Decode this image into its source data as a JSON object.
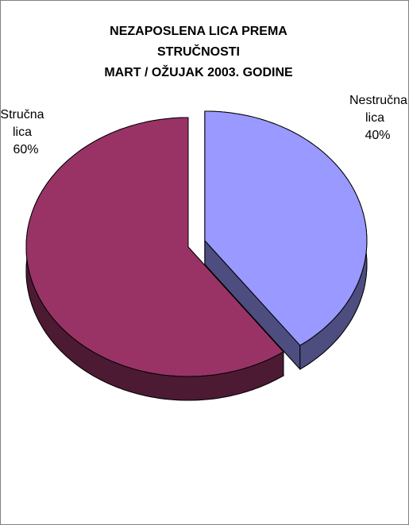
{
  "chart_data": {
    "type": "pie",
    "title": [
      "NEZAPOSLENA LICA PREMA",
      "STRUČNOSTI",
      "MART / OŽUJAK 2003. GODINE"
    ],
    "categories": [
      "Nestručna lica",
      "Stručna lica"
    ],
    "values": [
      40,
      60
    ],
    "value_labels": [
      "40%",
      "60%"
    ],
    "colors": [
      "#9999ff",
      "#993366"
    ],
    "side_colors": [
      "#4d4d80",
      "#4d1a33"
    ],
    "exploded": [
      true,
      false
    ]
  }
}
